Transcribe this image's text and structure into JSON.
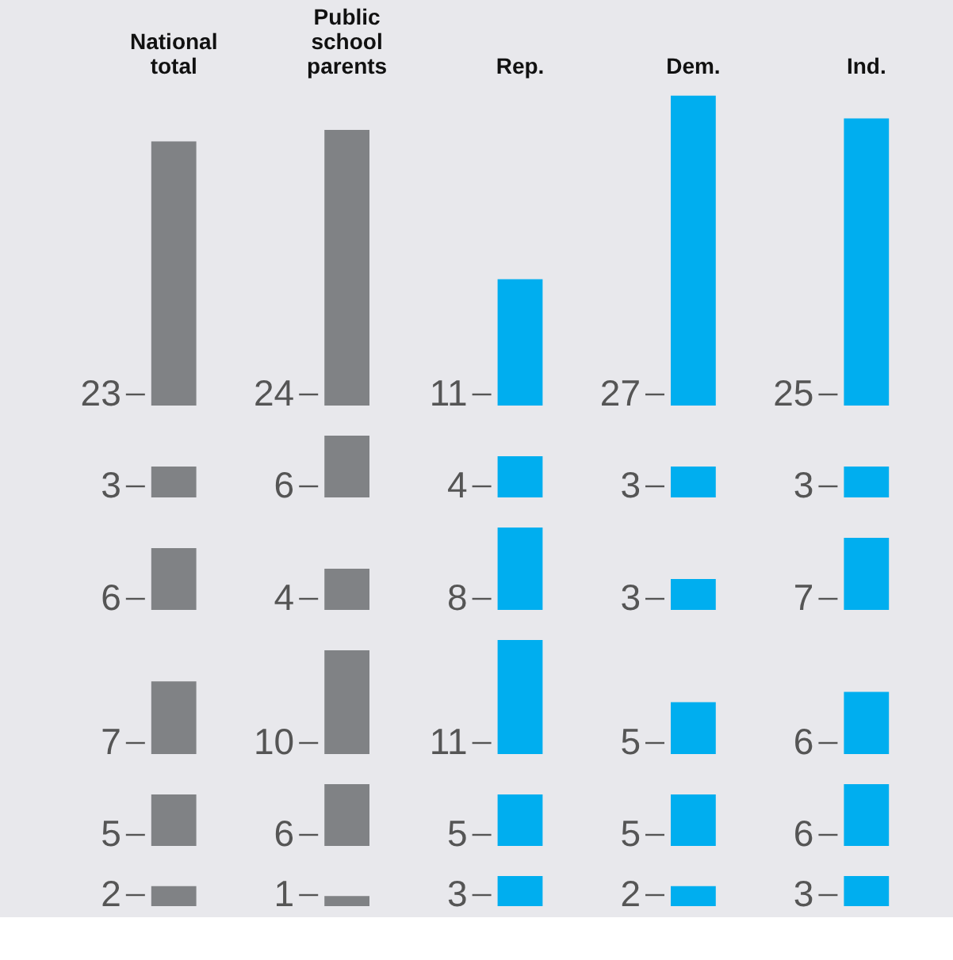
{
  "chart_data": [
    {
      "type": "bar",
      "categories": [
        "National total",
        "Public school parents",
        "Rep.",
        "Dem.",
        "Ind."
      ],
      "values": [
        23,
        24,
        11,
        27,
        25
      ],
      "colors": [
        "#808285",
        "#808285",
        "#00aeef",
        "#00aeef",
        "#00aeef"
      ],
      "data_labels": true,
      "tick_labels": "x"
    },
    {
      "type": "bar",
      "categories": [
        null,
        null,
        null,
        null,
        null
      ],
      "values": [
        3,
        6,
        4,
        3,
        3
      ],
      "colors": [
        "#808285",
        "#808285",
        "#00aeef",
        "#00aeef",
        "#00aeef"
      ],
      "data_labels": true,
      "tick_labels": false
    },
    {
      "type": "bar",
      "categories": [
        null,
        null,
        null,
        null,
        null
      ],
      "values": [
        6,
        4,
        8,
        3,
        7
      ],
      "colors": [
        "#808285",
        "#808285",
        "#00aeef",
        "#00aeef",
        "#00aeef"
      ],
      "data_labels": true,
      "tick_labels": false
    },
    {
      "type": "bar",
      "categories": [
        null,
        null,
        null,
        null,
        null
      ],
      "values": [
        7,
        10,
        11,
        5,
        6
      ],
      "colors": [
        "#808285",
        "#808285",
        "#00aeef",
        "#00aeef",
        "#00aeef"
      ],
      "data_labels": true,
      "tick_labels": false
    },
    {
      "type": "bar",
      "categories": [
        null,
        null,
        null,
        null,
        null
      ],
      "values": [
        5,
        6,
        5,
        5,
        6
      ],
      "colors": [
        "#808285",
        "#808285",
        "#00aeef",
        "#00aeef",
        "#00aeef"
      ],
      "data_labels": true,
      "tick_labels": false
    },
    {
      "type": "bar",
      "categories": [
        null,
        null,
        null,
        null,
        null
      ],
      "values": [
        2,
        1,
        3,
        2,
        3
      ],
      "colors": [
        "#808285",
        "#808285",
        "#00aeef",
        "#00aeef",
        "#00aeef"
      ],
      "data_labels": true,
      "tick_labels": false
    }
  ]
}
